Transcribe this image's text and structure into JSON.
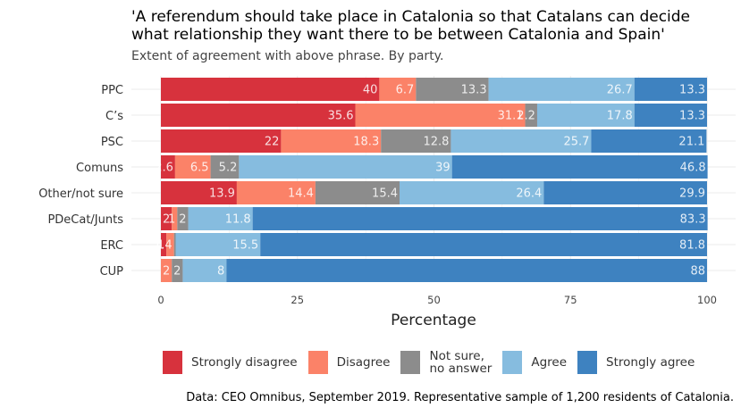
{
  "chart_data": {
    "type": "bar",
    "orientation": "horizontal",
    "stacked": true,
    "title": "'A referendum should take place in Catalonia so that Catalans can decide\nwhat relationship they want there to be between Catalonia and Spain'",
    "subtitle": "Extent of agreement with above phrase. By party.",
    "xlabel": "Percentage",
    "ylabel": "",
    "xlim": [
      0,
      100
    ],
    "xticks": [
      0,
      25,
      50,
      75,
      100
    ],
    "grid": true,
    "legend_position": "bottom",
    "categories": [
      "PPC",
      "C’s",
      "PSC",
      "Comuns",
      "Other/not sure",
      "PDeCat/Junts",
      "ERC",
      "CUP"
    ],
    "series": [
      {
        "name": "Strongly disagree",
        "color": "#d7323d",
        "values": [
          40,
          35.6,
          22,
          2.6,
          13.9,
          2,
          1,
          0
        ]
      },
      {
        "name": "Disagree",
        "color": "#fb8268",
        "values": [
          6.7,
          31.1,
          18.3,
          6.5,
          14.4,
          1,
          1.4,
          2
        ]
      },
      {
        "name": "Not sure,\nno answer",
        "color": "#8c8c8c",
        "values": [
          13.3,
          2.2,
          12.8,
          5.2,
          15.4,
          2,
          0.3,
          2
        ]
      },
      {
        "name": "Agree",
        "color": "#86bcdf",
        "values": [
          26.7,
          17.8,
          25.7,
          39,
          26.4,
          11.8,
          15.5,
          8
        ]
      },
      {
        "name": "Strongly agree",
        "color": "#3e82c0",
        "values": [
          13.3,
          13.3,
          21.1,
          46.8,
          29.9,
          83.3,
          81.8,
          88
        ]
      }
    ],
    "value_labels": [
      [
        "40",
        "6.7",
        "13.3",
        "26.7",
        "13.3"
      ],
      [
        "35.6",
        "31.1",
        "2.2",
        "17.8",
        "13.3"
      ],
      [
        "22",
        "18.3",
        "12.8",
        "25.7",
        "21.1"
      ],
      [
        "2.6",
        "6.5",
        "5.2",
        "39",
        "46.8"
      ],
      [
        "13.9",
        "14.4",
        "15.4",
        "26.4",
        "29.9"
      ],
      [
        "2",
        "1",
        "2",
        "11.8",
        "83.3"
      ],
      [
        "1",
        "1.4",
        "",
        "15.5",
        "81.8"
      ],
      [
        "",
        "2",
        "2",
        "8",
        "88"
      ]
    ]
  },
  "caption": "Data: CEO Omnibus, September 2019. Representative sample of 1,200 residents of Catalonia."
}
